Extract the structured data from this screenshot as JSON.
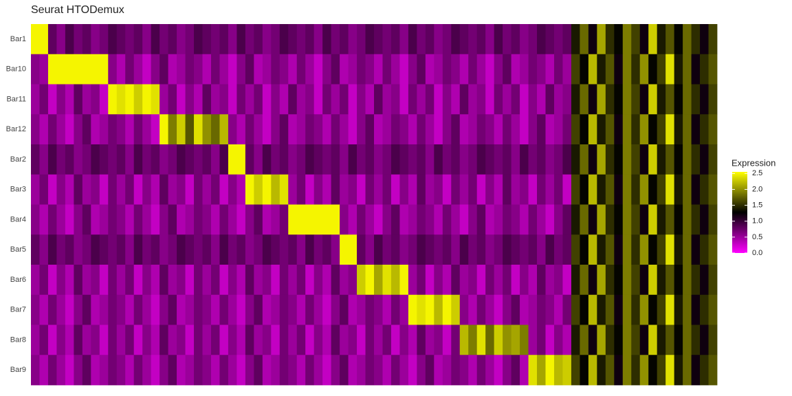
{
  "chart_data": {
    "type": "heatmap",
    "title": "Seurat HTODemux",
    "legend_title": "Expression",
    "rows": [
      "Bar1",
      "Bar10",
      "Bar11",
      "Bar12",
      "Bar2",
      "Bar3",
      "Bar4",
      "Bar5",
      "Bar6",
      "Bar7",
      "Bar8",
      "Bar9"
    ],
    "colors": [
      "#ff00ff",
      "#000000",
      "#ffff00"
    ],
    "zlim": [
      0,
      2.55
    ],
    "zticks": [
      {
        "value": 0,
        "label": "0.0"
      },
      {
        "value": 0.5,
        "label": "0.5"
      },
      {
        "value": 1,
        "label": "1.0"
      },
      {
        "value": 1.5,
        "label": "1.5"
      },
      {
        "value": 2,
        "label": "2.0"
      },
      {
        "value": 2.5,
        "label": "2.5"
      }
    ],
    "z": [
      [
        2.5,
        2.5,
        0.8,
        0.6,
        0.9,
        0.7,
        0.8,
        0.6,
        0.7,
        0.9,
        0.8,
        0.7,
        0.8,
        0.6,
        0.9,
        0.7,
        0.8,
        0.6,
        0.7,
        0.9,
        0.8,
        0.7,
        0.8,
        0.6,
        0.9,
        0.7,
        0.8,
        0.6,
        0.7,
        0.9,
        0.8,
        0.7,
        0.8,
        0.6,
        0.9,
        0.7,
        0.8,
        0.6,
        0.7,
        0.9,
        0.8,
        0.7,
        0.8,
        0.6,
        0.9,
        0.7,
        0.8,
        0.6,
        0.7,
        0.9,
        0.8,
        0.7,
        0.8,
        0.6,
        0.9,
        0.7,
        0.8,
        0.6,
        0.7,
        0.9,
        0.8,
        0.7,
        0.8,
        1.4,
        1.8,
        1.2,
        2.1,
        1.5,
        1.3,
        1.9,
        1.6,
        1.2,
        2.3,
        1.4,
        1.7,
        1.3,
        1.8,
        1.5,
        1.2,
        1.6
      ],
      [
        0.6,
        0.5,
        2.5,
        2.5,
        2.5,
        2.5,
        2.5,
        2.5,
        2.5,
        0.6,
        0.4,
        0.7,
        0.5,
        0.3,
        0.6,
        0.8,
        0.4,
        0.5,
        0.7,
        0.6,
        0.4,
        0.7,
        0.5,
        0.3,
        0.6,
        0.8,
        0.4,
        0.5,
        0.7,
        0.6,
        0.4,
        0.7,
        0.5,
        0.3,
        0.6,
        0.8,
        0.4,
        0.5,
        0.7,
        0.6,
        0.4,
        0.7,
        0.5,
        0.3,
        0.6,
        0.8,
        0.4,
        0.5,
        0.7,
        0.6,
        0.4,
        0.7,
        0.5,
        0.3,
        0.6,
        0.8,
        0.4,
        0.5,
        0.7,
        0.6,
        0.4,
        0.7,
        0.5,
        1.6,
        1.3,
        2.2,
        1.4,
        1.7,
        1.2,
        1.9,
        1.5,
        2.0,
        1.3,
        1.6,
        2.4,
        1.4,
        1.8,
        1.2,
        1.5,
        1.7
      ],
      [
        0.5,
        0.7,
        0.3,
        0.6,
        0.4,
        0.8,
        0.5,
        0.6,
        0.3,
        2.5,
        2.4,
        2.5,
        2.3,
        2.5,
        2.4,
        0.5,
        0.7,
        0.3,
        0.6,
        0.4,
        0.8,
        0.5,
        0.6,
        0.3,
        0.7,
        0.5,
        0.7,
        0.3,
        0.6,
        0.4,
        0.8,
        0.5,
        0.6,
        0.3,
        0.7,
        0.5,
        0.7,
        0.3,
        0.6,
        0.4,
        0.8,
        0.5,
        0.6,
        0.3,
        0.7,
        0.5,
        0.7,
        0.3,
        0.6,
        0.4,
        0.8,
        0.5,
        0.6,
        0.3,
        0.7,
        0.5,
        0.7,
        0.3,
        0.6,
        0.4,
        0.8,
        0.5,
        0.6,
        1.4,
        1.8,
        1.2,
        2.1,
        1.5,
        1.3,
        1.9,
        1.6,
        1.2,
        2.3,
        1.4,
        1.7,
        1.3,
        1.8,
        1.5,
        1.2,
        1.6
      ],
      [
        0.6,
        0.4,
        0.7,
        0.5,
        0.3,
        0.6,
        0.8,
        0.4,
        0.5,
        0.7,
        0.6,
        0.4,
        0.7,
        0.5,
        0.3,
        2.5,
        1.9,
        2.3,
        1.7,
        2.4,
        2.0,
        1.8,
        2.2,
        0.6,
        0.4,
        0.7,
        0.5,
        0.3,
        0.6,
        0.8,
        0.4,
        0.5,
        0.7,
        0.6,
        0.4,
        0.7,
        0.5,
        0.3,
        0.6,
        0.8,
        0.4,
        0.5,
        0.7,
        0.6,
        0.4,
        0.7,
        0.5,
        0.3,
        0.6,
        0.8,
        0.4,
        0.5,
        0.7,
        0.6,
        0.4,
        0.7,
        0.5,
        0.3,
        0.6,
        0.8,
        0.4,
        0.5,
        0.7,
        1.6,
        1.3,
        2.2,
        1.4,
        1.7,
        1.2,
        1.9,
        1.5,
        2.0,
        1.3,
        1.6,
        2.4,
        1.4,
        1.8,
        1.2,
        1.5,
        1.7
      ],
      [
        0.8,
        0.6,
        0.9,
        0.7,
        0.8,
        0.6,
        0.7,
        0.9,
        0.8,
        0.7,
        0.8,
        0.6,
        0.9,
        0.7,
        0.8,
        0.6,
        0.7,
        0.9,
        0.8,
        0.7,
        0.8,
        0.6,
        0.9,
        2.5,
        2.5,
        0.8,
        0.6,
        0.9,
        0.7,
        0.8,
        0.6,
        0.7,
        0.9,
        0.8,
        0.7,
        0.8,
        0.6,
        0.9,
        0.7,
        0.8,
        0.6,
        0.7,
        0.9,
        0.8,
        0.7,
        0.8,
        0.6,
        0.9,
        0.7,
        0.8,
        0.6,
        0.7,
        0.9,
        0.8,
        0.7,
        0.8,
        0.6,
        0.9,
        0.7,
        0.8,
        0.6,
        0.7,
        0.9,
        1.4,
        1.8,
        1.2,
        2.1,
        1.5,
        1.3,
        1.9,
        1.6,
        1.2,
        2.3,
        1.4,
        1.7,
        1.3,
        1.8,
        1.5,
        1.2,
        1.6
      ],
      [
        0.5,
        0.7,
        0.3,
        0.6,
        0.4,
        0.8,
        0.5,
        0.6,
        0.3,
        0.7,
        0.5,
        0.7,
        0.3,
        0.6,
        0.4,
        0.8,
        0.5,
        0.6,
        0.3,
        0.7,
        0.5,
        0.7,
        0.3,
        0.6,
        0.4,
        2.5,
        2.3,
        2.5,
        2.2,
        2.4,
        0.5,
        0.7,
        0.3,
        0.6,
        0.4,
        0.8,
        0.5,
        0.6,
        0.3,
        0.7,
        0.5,
        0.7,
        0.3,
        0.6,
        0.4,
        0.8,
        0.5,
        0.6,
        0.3,
        0.7,
        0.5,
        0.7,
        0.3,
        0.6,
        0.4,
        0.8,
        0.5,
        0.6,
        0.3,
        0.7,
        0.5,
        0.7,
        0.3,
        1.6,
        1.3,
        2.2,
        1.4,
        1.7,
        1.2,
        1.9,
        1.5,
        2.0,
        1.3,
        1.6,
        2.4,
        1.4,
        1.8,
        1.2,
        1.5,
        1.7
      ],
      [
        0.6,
        0.4,
        0.7,
        0.5,
        0.3,
        0.6,
        0.8,
        0.4,
        0.5,
        0.7,
        0.6,
        0.4,
        0.7,
        0.5,
        0.3,
        0.6,
        0.8,
        0.4,
        0.5,
        0.7,
        0.6,
        0.4,
        0.7,
        0.5,
        0.3,
        0.6,
        0.8,
        0.4,
        0.5,
        0.7,
        2.5,
        2.5,
        2.5,
        2.5,
        2.5,
        2.5,
        0.6,
        0.4,
        0.7,
        0.5,
        0.3,
        0.6,
        0.8,
        0.4,
        0.5,
        0.7,
        0.6,
        0.4,
        0.7,
        0.5,
        0.3,
        0.6,
        0.8,
        0.4,
        0.5,
        0.7,
        0.6,
        0.4,
        0.7,
        0.5,
        0.3,
        0.6,
        0.8,
        1.4,
        1.8,
        1.2,
        2.1,
        1.5,
        1.3,
        1.9,
        1.6,
        1.2,
        2.3,
        1.4,
        1.7,
        1.3,
        1.8,
        1.5,
        1.2,
        1.6
      ],
      [
        0.8,
        0.6,
        0.9,
        0.7,
        0.8,
        0.6,
        0.7,
        0.9,
        0.8,
        0.7,
        0.8,
        0.6,
        0.9,
        0.7,
        0.8,
        0.6,
        0.7,
        0.9,
        0.8,
        0.7,
        0.8,
        0.6,
        0.9,
        0.7,
        0.8,
        0.6,
        0.7,
        0.9,
        0.8,
        0.7,
        0.8,
        0.6,
        0.9,
        0.7,
        0.8,
        0.6,
        2.5,
        2.5,
        0.8,
        0.6,
        0.9,
        0.7,
        0.8,
        0.6,
        0.7,
        0.9,
        0.8,
        0.7,
        0.8,
        0.6,
        0.9,
        0.7,
        0.8,
        0.6,
        0.7,
        0.9,
        0.8,
        0.7,
        0.8,
        0.6,
        0.9,
        0.7,
        0.8,
        1.6,
        1.3,
        2.2,
        1.4,
        1.7,
        1.2,
        1.9,
        1.5,
        2.0,
        1.3,
        1.6,
        2.4,
        1.4,
        1.8,
        1.2,
        1.5,
        1.7
      ],
      [
        0.5,
        0.7,
        0.3,
        0.6,
        0.4,
        0.8,
        0.5,
        0.6,
        0.3,
        0.7,
        0.5,
        0.7,
        0.3,
        0.6,
        0.4,
        0.8,
        0.5,
        0.6,
        0.3,
        0.7,
        0.5,
        0.7,
        0.3,
        0.6,
        0.4,
        0.8,
        0.5,
        0.6,
        0.3,
        0.7,
        0.5,
        0.7,
        0.3,
        0.6,
        0.4,
        0.8,
        0.5,
        0.6,
        2.3,
        2.5,
        2.1,
        2.4,
        2.2,
        2.5,
        0.5,
        0.7,
        0.3,
        0.6,
        0.4,
        0.8,
        0.5,
        0.6,
        0.3,
        0.7,
        0.5,
        0.7,
        0.3,
        0.6,
        0.4,
        0.8,
        0.5,
        0.6,
        0.3,
        1.4,
        1.8,
        1.2,
        2.1,
        1.5,
        1.3,
        1.9,
        1.6,
        1.2,
        2.3,
        1.4,
        1.7,
        1.3,
        1.8,
        1.5,
        1.2,
        1.6
      ],
      [
        0.6,
        0.4,
        0.7,
        0.5,
        0.3,
        0.6,
        0.8,
        0.4,
        0.5,
        0.7,
        0.6,
        0.4,
        0.7,
        0.5,
        0.3,
        0.6,
        0.8,
        0.4,
        0.5,
        0.7,
        0.6,
        0.4,
        0.7,
        0.5,
        0.3,
        0.6,
        0.8,
        0.4,
        0.5,
        0.7,
        0.6,
        0.4,
        0.7,
        0.5,
        0.3,
        0.6,
        0.8,
        0.4,
        0.5,
        0.7,
        0.6,
        0.4,
        0.7,
        0.5,
        2.5,
        2.4,
        2.5,
        2.2,
        2.5,
        2.3,
        0.6,
        0.4,
        0.7,
        0.5,
        0.3,
        0.6,
        0.8,
        0.4,
        0.5,
        0.7,
        0.6,
        0.4,
        0.7,
        1.6,
        1.3,
        2.2,
        1.4,
        1.7,
        1.2,
        1.9,
        1.5,
        2.0,
        1.3,
        1.6,
        2.4,
        1.4,
        1.8,
        1.2,
        1.5,
        1.7
      ],
      [
        0.5,
        0.7,
        0.3,
        0.6,
        0.4,
        0.8,
        0.5,
        0.6,
        0.3,
        0.7,
        0.5,
        0.7,
        0.3,
        0.6,
        0.4,
        0.8,
        0.5,
        0.6,
        0.3,
        0.7,
        0.5,
        0.7,
        0.3,
        0.6,
        0.4,
        0.8,
        0.5,
        0.6,
        0.3,
        0.7,
        0.5,
        0.7,
        0.3,
        0.6,
        0.4,
        0.8,
        0.5,
        0.6,
        0.3,
        0.7,
        0.5,
        0.7,
        0.3,
        0.6,
        0.4,
        0.8,
        0.5,
        0.6,
        0.3,
        0.7,
        2.2,
        1.9,
        2.4,
        1.8,
        2.3,
        2.0,
        2.1,
        1.9,
        0.5,
        0.7,
        0.3,
        0.6,
        0.4,
        1.4,
        1.8,
        1.2,
        2.1,
        1.5,
        1.3,
        1.9,
        1.6,
        1.2,
        2.3,
        1.4,
        1.7,
        1.3,
        1.8,
        1.5,
        1.2,
        1.6
      ],
      [
        0.6,
        0.4,
        0.7,
        0.5,
        0.3,
        0.6,
        0.8,
        0.4,
        0.5,
        0.7,
        0.6,
        0.4,
        0.7,
        0.5,
        0.3,
        0.6,
        0.8,
        0.4,
        0.5,
        0.7,
        0.6,
        0.4,
        0.7,
        0.5,
        0.3,
        0.6,
        0.8,
        0.4,
        0.5,
        0.7,
        0.6,
        0.4,
        0.7,
        0.5,
        0.3,
        0.6,
        0.8,
        0.4,
        0.5,
        0.7,
        0.6,
        0.4,
        0.7,
        0.5,
        0.3,
        0.6,
        0.8,
        0.4,
        0.5,
        0.7,
        0.6,
        0.4,
        0.7,
        0.5,
        0.3,
        0.6,
        0.8,
        0.4,
        2.4,
        2.1,
        2.5,
        2.2,
        2.3,
        1.6,
        1.3,
        2.2,
        1.4,
        1.7,
        1.2,
        1.9,
        1.5,
        2.0,
        1.3,
        1.6,
        2.4,
        1.4,
        1.8,
        1.2,
        1.5,
        1.7
      ]
    ]
  }
}
